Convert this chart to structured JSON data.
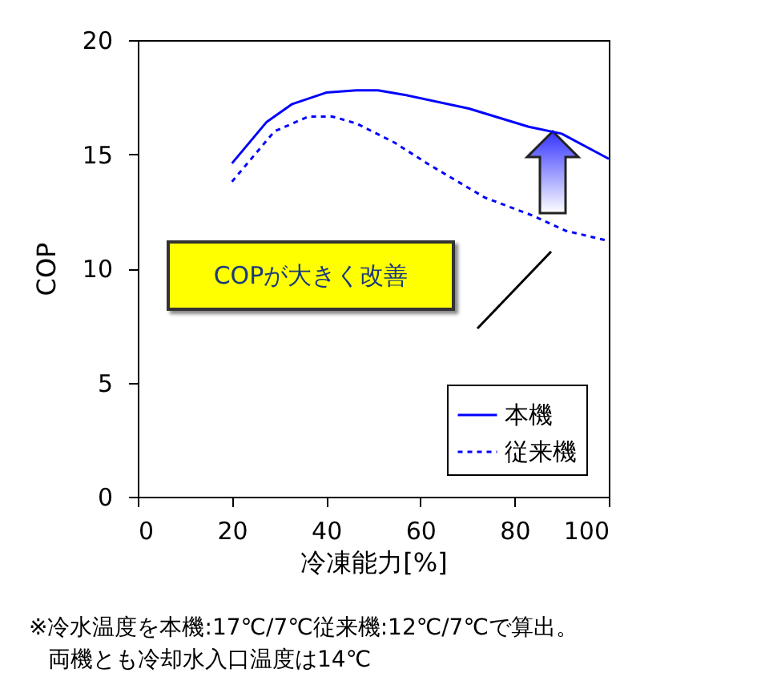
{
  "chart_data": {
    "type": "line",
    "xlabel": "冷凍能力[%]",
    "ylabel": "COP",
    "xlim": [
      0,
      100
    ],
    "xticks": [
      0,
      20,
      40,
      60,
      80,
      100
    ],
    "ylim": [
      0,
      20
    ],
    "yticks": [
      0,
      5,
      10,
      15,
      20
    ],
    "grid": false,
    "legend": "bottom right",
    "marker": "none",
    "series": [
      {
        "name": "本機",
        "color": "#0000ff",
        "line_style": "solid",
        "x": [
          20,
          27.3,
          32.8,
          40,
          46.4,
          51,
          56.7,
          70.3,
          83,
          90,
          100
        ],
        "values": [
          14.6,
          16.4,
          17.2,
          17.7,
          17.8,
          17.8,
          17.6,
          17,
          16.2,
          15.9,
          14.8
        ]
      },
      {
        "name": "従来機",
        "color": "#0000ff",
        "line_style": "dotted",
        "x": [
          20,
          29,
          36.2,
          41.3,
          46.4,
          54.6,
          61.4,
          73.7,
          84,
          90.8,
          100
        ],
        "values": [
          13.8,
          16,
          16.65,
          16.65,
          16.35,
          15.5,
          14.6,
          13.1,
          12.3,
          11.65,
          11.2
        ]
      }
    ],
    "annotations": [
      "COPが大きく改善",
      "※冷水温度を本機:17℃/7℃従来機:12℃/7℃で算出。",
      "両機とも冷却水入口温度は14℃"
    ]
  }
}
